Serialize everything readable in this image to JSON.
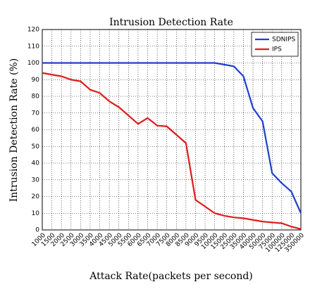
{
  "chart_data": {
    "type": "line",
    "title": "Intrusion Detection Rate",
    "x_label": "Attack Rate(packets per second)",
    "y_label": "Intrusion Detection Rate (%)",
    "categories": [
      "1000",
      "1500",
      "2000",
      "2500",
      "3000",
      "3500",
      "4000",
      "4500",
      "5000",
      "5500",
      "6000",
      "6500",
      "7000",
      "7500",
      "8000",
      "8500",
      "9000",
      "9500",
      "10000",
      "15000",
      "25000",
      "35000",
      "40000",
      "50000",
      "75000",
      "100000",
      "125000",
      "350000"
    ],
    "series": [
      {
        "name": "SDNIPS",
        "color": "#1f3fd0",
        "values": [
          100,
          100,
          100,
          100,
          100,
          100,
          100,
          100,
          100,
          100,
          100,
          100,
          100,
          100,
          100,
          100,
          100,
          100,
          100,
          99,
          98,
          92,
          73,
          65,
          34,
          28,
          23,
          10
        ]
      },
      {
        "name": "IPS",
        "color": "#e01b1b",
        "values": [
          94,
          93,
          92,
          90,
          89,
          84,
          82,
          77,
          73.5,
          68.5,
          63.5,
          67,
          62.5,
          62,
          57,
          52,
          18,
          14,
          10,
          8.5,
          7.5,
          7,
          6,
          5,
          4.5,
          4,
          2,
          0.5
        ]
      }
    ],
    "ylim": [
      0,
      120
    ],
    "yticks": [
      0,
      10,
      20,
      30,
      40,
      50,
      60,
      70,
      80,
      90,
      100,
      110,
      120
    ],
    "grid": true,
    "legend": "upper right"
  }
}
